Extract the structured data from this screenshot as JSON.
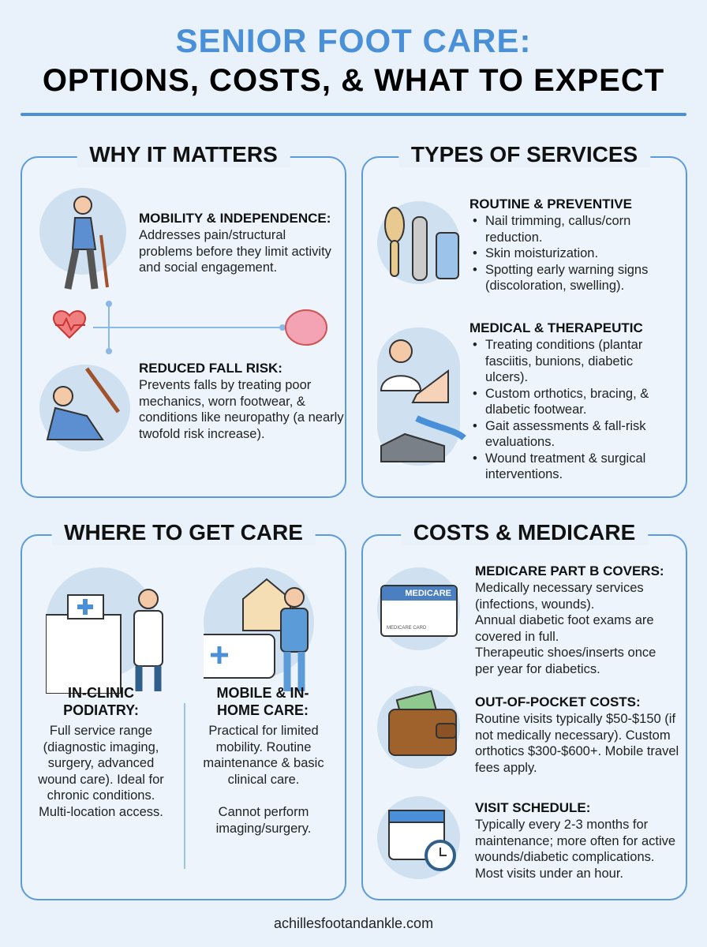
{
  "title": {
    "line1": "SENIOR FOOT CARE:",
    "line2": "OPTIONS, COSTS, & WHAT TO EXPECT"
  },
  "why": {
    "title": "WHY IT MATTERS",
    "mobility": {
      "heading": "MOBILITY & INDEPENDENCE:",
      "text": "Addresses pain/structural problems before they limit activity and social engagement."
    },
    "falls": {
      "heading": "REDUCED FALL RISK:",
      "text": "Prevents falls by treating poor mechanics, worn footwear, & conditions like neuropathy (a nearly twofold risk increase)."
    }
  },
  "types": {
    "title": "TYPES OF SERVICES",
    "routine": {
      "heading": "ROUTINE & PREVENTIVE",
      "items": [
        "Nail trimming, callus/corn reduction.",
        "Skin moisturization.",
        "Spotting early warning signs (discoloration, swelling)."
      ]
    },
    "medical": {
      "heading": "MEDICAL & THERAPEUTIC",
      "items": [
        "Treating conditions (plantar fasciitis, bunions, diabetic ulcers).",
        "Custom orthotics, bracing, & dlabetic footwear.",
        "Gait assessments & fall-risk evaluations.",
        "Wound treatment & surgical interventions."
      ]
    }
  },
  "where": {
    "title": "WHERE TO GET CARE",
    "clinic": {
      "heading": "IN-CLINIC PODIATRY:",
      "text": "Full service range (diagnostic imaging, surgery, advanced wound care). Ideal for chronic conditions. Multi-location access."
    },
    "mobile": {
      "heading": "MOBILE & IN-HOME CARE:",
      "text": "Practical for limited mobility. Routine maintenance & basic clinical care.",
      "note": "Cannot perform imaging/surgery."
    }
  },
  "costs": {
    "title": "COSTS & MEDICARE",
    "card": {
      "label": "MEDICARE",
      "sub": "MEDICARE CARD"
    },
    "medicare": {
      "heading": "MEDICARE PART B COVERS:",
      "lines": [
        "Medically necessary services (infections, wounds).",
        "Annual diabetic foot exams are covered in full.",
        "Therapeutic shoes/inserts once per year for diabetics."
      ]
    },
    "oop": {
      "heading": "OUT-OF-POCKET COSTS:",
      "text": "Routine visits typically $50-$150 (if not medically necessary). Custom orthotics $300-$600+. Mobile travel fees apply."
    },
    "schedule": {
      "heading": "VISIT SCHEDULE:",
      "text": "Typically every 2-3 months for maintenance; more often for active wounds/diabetic complications. Most visits under an hour."
    }
  },
  "footer": "achillesfootandankle.com",
  "colors": {
    "accent": "#4a90d9",
    "background": "#e9f2fb"
  }
}
